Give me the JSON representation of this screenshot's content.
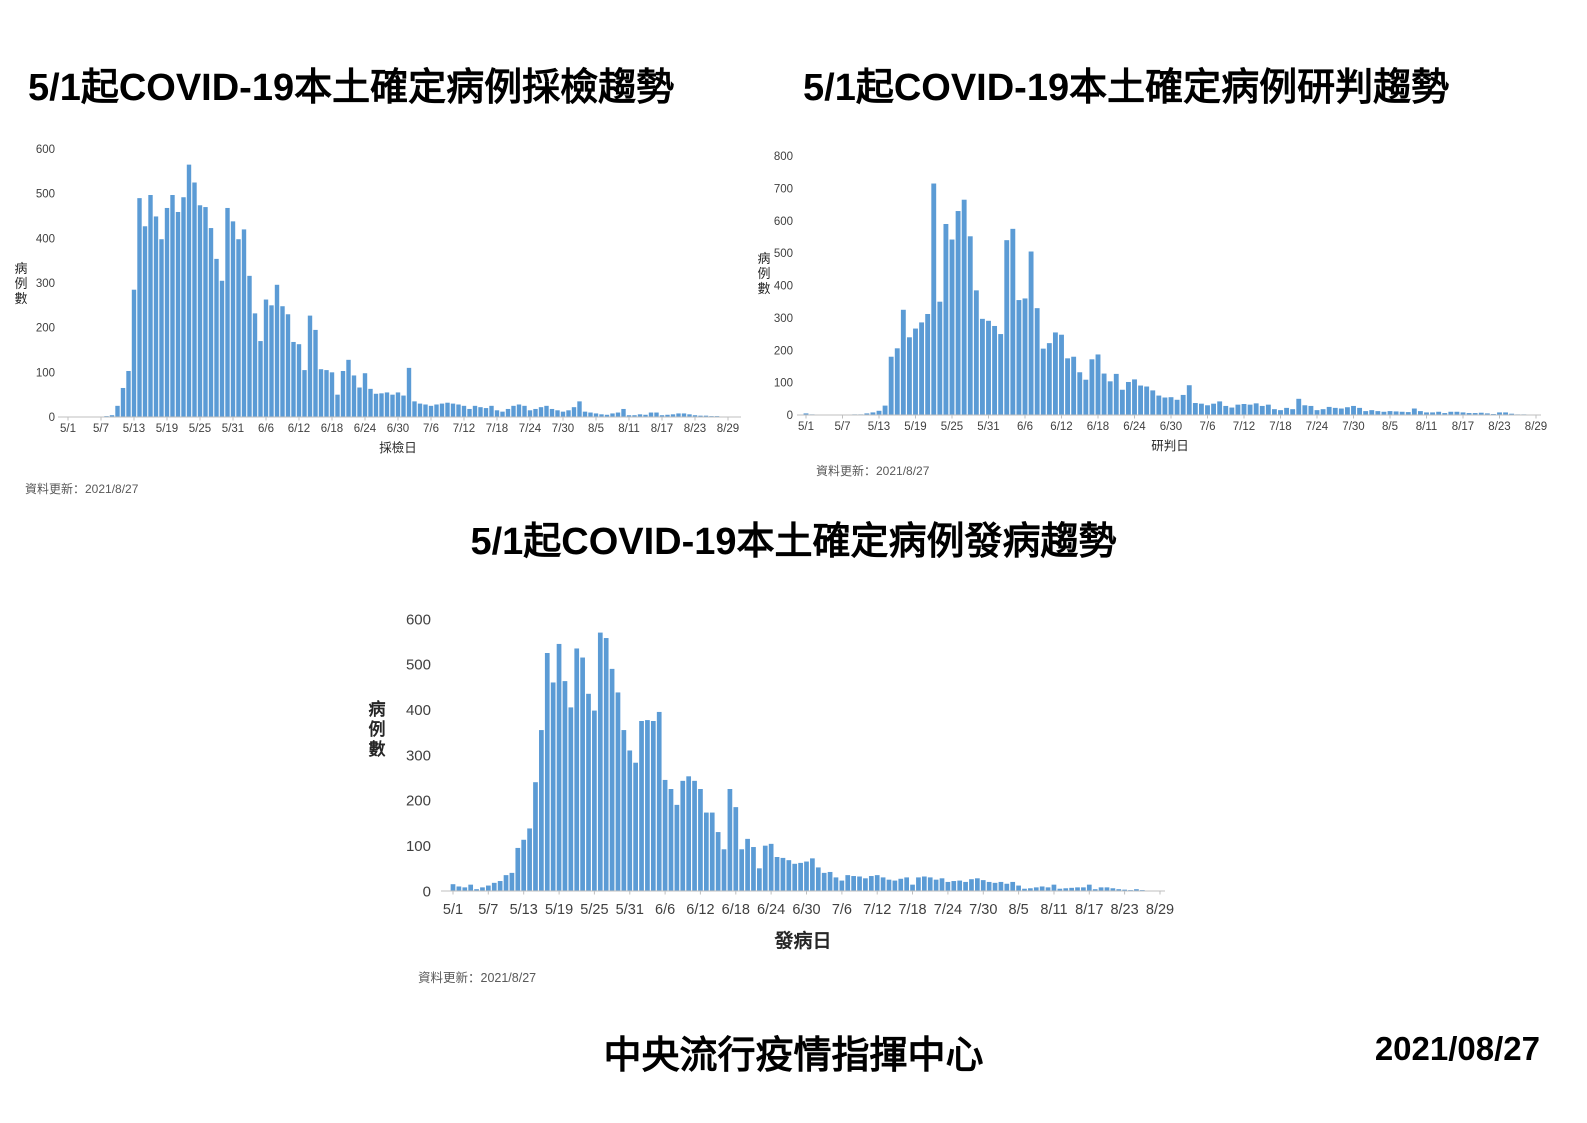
{
  "footer": {
    "organization": "中央流行疫情指揮中心",
    "date": "2021/08/27"
  },
  "style": {
    "bar_color": "#5B9BD5",
    "axis_color": "#BFBFBF",
    "label_color": "#404040"
  },
  "chart_data": [
    {
      "type": "bar",
      "title": "5/1起COVID-19本土確定病例採檢趨勢",
      "xlabel": "採檢日",
      "ylabel": "病例數",
      "note": "資料更新：2021/8/27",
      "ylim": [
        0,
        600
      ],
      "ytick": 100,
      "y_tick_labels": [
        "0",
        "100",
        "200",
        "300",
        "400",
        "500",
        "600"
      ],
      "x_tick_labels": [
        "5/1",
        "5/7",
        "5/13",
        "5/19",
        "5/25",
        "5/31",
        "6/6",
        "6/12",
        "6/18",
        "6/24",
        "6/30",
        "7/6",
        "7/12",
        "7/18",
        "7/24",
        "7/30",
        "8/5",
        "8/11",
        "8/17",
        "8/23",
        "8/29"
      ],
      "x_range_daily": "5/1 to 8/29 (daily bars)",
      "values": [
        0,
        0,
        0,
        0,
        0,
        0,
        0,
        2,
        4,
        25,
        65,
        103,
        285,
        490,
        427,
        497,
        449,
        398,
        468,
        497,
        459,
        492,
        565,
        525,
        474,
        470,
        423,
        354,
        305,
        468,
        438,
        398,
        420,
        316,
        232,
        170,
        263,
        250,
        296,
        248,
        230,
        168,
        163,
        105,
        227,
        195,
        107,
        105,
        100,
        50,
        103,
        128,
        93,
        66,
        98,
        63,
        52,
        53,
        55,
        50,
        55,
        48,
        110,
        35,
        30,
        28,
        25,
        28,
        30,
        32,
        30,
        28,
        25,
        18,
        25,
        22,
        20,
        25,
        15,
        12,
        18,
        25,
        28,
        25,
        15,
        18,
        22,
        25,
        18,
        15,
        12,
        15,
        22,
        35,
        12,
        10,
        8,
        6,
        5,
        8,
        10,
        18,
        4,
        4,
        6,
        5,
        10,
        10,
        4,
        5,
        6,
        8,
        8,
        6,
        4,
        3,
        3,
        2,
        2,
        1,
        0
      ]
    },
    {
      "type": "bar",
      "title": "5/1起COVID-19本土確定病例研判趨勢",
      "xlabel": "研判日",
      "ylabel": "病例數",
      "note": "資料更新：2021/8/27",
      "ylim": [
        0,
        800
      ],
      "ytick": 100,
      "y_tick_labels": [
        "0",
        "100",
        "200",
        "300",
        "400",
        "500",
        "600",
        "700",
        "800"
      ],
      "x_tick_labels": [
        "5/1",
        "5/7",
        "5/13",
        "5/19",
        "5/25",
        "5/31",
        "6/6",
        "6/12",
        "6/18",
        "6/24",
        "6/30",
        "7/6",
        "7/12",
        "7/18",
        "7/24",
        "7/30",
        "8/5",
        "8/11",
        "8/17",
        "8/23",
        "8/29"
      ],
      "x_range_daily": "5/1 to 8/29 (daily bars)",
      "values": [
        5,
        2,
        1,
        1,
        1,
        1,
        1,
        1,
        2,
        2,
        5,
        8,
        13,
        29,
        180,
        206,
        325,
        240,
        267,
        286,
        312,
        715,
        350,
        590,
        542,
        630,
        665,
        552,
        385,
        297,
        291,
        275,
        250,
        540,
        575,
        355,
        360,
        505,
        330,
        205,
        222,
        255,
        248,
        175,
        180,
        132,
        109,
        172,
        187,
        128,
        104,
        127,
        78,
        102,
        110,
        91,
        88,
        76,
        60,
        54,
        55,
        47,
        62,
        92,
        37,
        35,
        30,
        35,
        42,
        28,
        23,
        32,
        34,
        32,
        36,
        28,
        32,
        18,
        15,
        22,
        18,
        50,
        30,
        28,
        15,
        18,
        25,
        22,
        20,
        24,
        28,
        22,
        12,
        15,
        12,
        10,
        12,
        11,
        10,
        9,
        20,
        12,
        8,
        8,
        10,
        6,
        10,
        10,
        8,
        6,
        6,
        7,
        5,
        3,
        8,
        8,
        4,
        2,
        2,
        1,
        0
      ]
    },
    {
      "type": "bar",
      "title": "5/1起COVID-19本土確定病例發病趨勢",
      "xlabel": "發病日",
      "ylabel": "病例數",
      "note": "資料更新：2021/8/27",
      "ylim": [
        0,
        600
      ],
      "ytick": 100,
      "y_tick_labels": [
        "0",
        "100",
        "200",
        "300",
        "400",
        "500",
        "600"
      ],
      "x_tick_labels": [
        "5/1",
        "5/7",
        "5/13",
        "5/19",
        "5/25",
        "5/31",
        "6/6",
        "6/12",
        "6/18",
        "6/24",
        "6/30",
        "7/6",
        "7/12",
        "7/18",
        "7/24",
        "7/30",
        "8/5",
        "8/11",
        "8/17",
        "8/23",
        "8/29"
      ],
      "x_range_daily": "5/1 to 8/29 (daily bars)",
      "values": [
        15,
        10,
        8,
        14,
        4,
        8,
        12,
        18,
        22,
        35,
        40,
        95,
        113,
        138,
        240,
        355,
        525,
        460,
        545,
        463,
        405,
        535,
        515,
        435,
        398,
        570,
        558,
        490,
        438,
        355,
        310,
        283,
        375,
        377,
        375,
        395,
        245,
        225,
        190,
        243,
        253,
        243,
        225,
        173,
        173,
        130,
        92,
        225,
        185,
        92,
        115,
        97,
        50,
        100,
        104,
        75,
        73,
        68,
        60,
        62,
        65,
        72,
        52,
        40,
        42,
        30,
        23,
        35,
        33,
        32,
        28,
        33,
        35,
        30,
        25,
        23,
        27,
        30,
        14,
        30,
        32,
        30,
        25,
        28,
        20,
        22,
        23,
        20,
        26,
        28,
        24,
        20,
        18,
        20,
        16,
        20,
        12,
        5,
        6,
        8,
        10,
        8,
        14,
        5,
        6,
        7,
        8,
        8,
        14,
        4,
        8,
        8,
        6,
        4,
        3,
        2,
        4,
        2,
        1,
        0,
        0
      ]
    }
  ]
}
